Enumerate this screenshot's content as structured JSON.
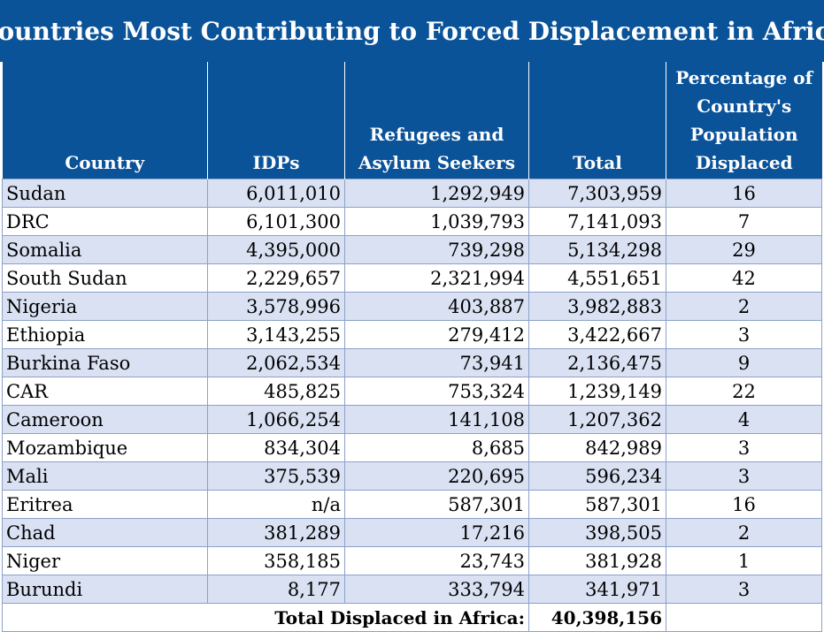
{
  "title": "Countries Most Contributing to Forced Displacement in Africa",
  "chart_data": {
    "type": "table",
    "title": "Countries Most Contributing to Forced Displacement in Africa",
    "columns": [
      "Country",
      "IDPs",
      "Refugees and Asylum Seekers",
      "Total",
      "Percentage of Country's Population Displaced"
    ],
    "rows": [
      [
        "Sudan",
        "6,011,010",
        "1,292,949",
        "7,303,959",
        "16"
      ],
      [
        "DRC",
        "6,101,300",
        "1,039,793",
        "7,141,093",
        "7"
      ],
      [
        "Somalia",
        "4,395,000",
        "739,298",
        "5,134,298",
        "29"
      ],
      [
        "South Sudan",
        "2,229,657",
        "2,321,994",
        "4,551,651",
        "42"
      ],
      [
        "Nigeria",
        "3,578,996",
        "403,887",
        "3,982,883",
        "2"
      ],
      [
        "Ethiopia",
        "3,143,255",
        "279,412",
        "3,422,667",
        "3"
      ],
      [
        "Burkina Faso",
        "2,062,534",
        "73,941",
        "2,136,475",
        "9"
      ],
      [
        "CAR",
        "485,825",
        "753,324",
        "1,239,149",
        "22"
      ],
      [
        "Cameroon",
        "1,066,254",
        "141,108",
        "1,207,362",
        "4"
      ],
      [
        "Mozambique",
        "834,304",
        "8,685",
        "842,989",
        "3"
      ],
      [
        "Mali",
        "375,539",
        "220,695",
        "596,234",
        "3"
      ],
      [
        "Eritrea",
        "n/a",
        "587,301",
        "587,301",
        "16"
      ],
      [
        "Chad",
        "381,289",
        "17,216",
        "398,505",
        "2"
      ],
      [
        "Niger",
        "358,185",
        "23,743",
        "381,928",
        "1"
      ],
      [
        "Burundi",
        "8,177",
        "333,794",
        "341,971",
        "3"
      ]
    ],
    "footer": {
      "label": "Total Displaced in Africa:",
      "value": "40,398,156"
    }
  },
  "colors": {
    "header_bg": "#0b5399",
    "band_row": "#d9e1f2",
    "border": "#8ca2c9"
  }
}
